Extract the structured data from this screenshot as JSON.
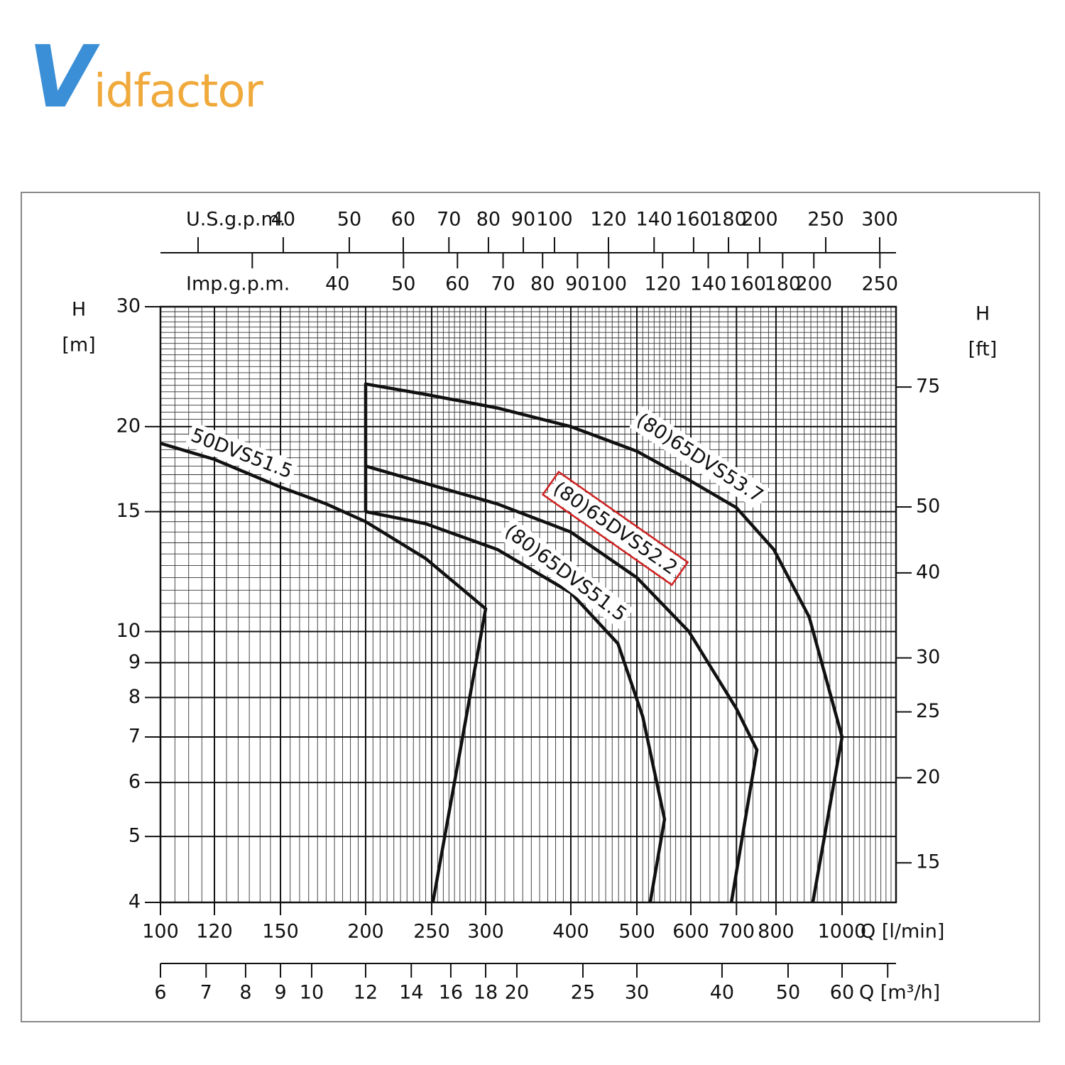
{
  "logo": "Vidfactor",
  "chart_data": {
    "type": "line",
    "log_x": true,
    "log_y": true,
    "grid": true,
    "xlabel": "Q [l/min]",
    "ylabel": [
      "H",
      "[m]"
    ],
    "y2label": [
      "H",
      "[ft]"
    ],
    "xlim": [
      100,
      1200
    ],
    "xticks": [
      100,
      120,
      150,
      200,
      250,
      300,
      400,
      500,
      600,
      700,
      800,
      1000
    ],
    "ylim": [
      4,
      30
    ],
    "yticks": [
      4,
      5,
      6,
      7,
      8,
      9,
      10,
      15,
      20,
      30
    ],
    "y2lim": [
      13.12,
      98.43
    ],
    "y2ticks": [
      15,
      20,
      25,
      30,
      40,
      50,
      75
    ],
    "xgrid_minor": [
      105,
      110,
      115,
      125,
      130,
      135,
      140,
      145,
      155,
      160,
      165,
      170,
      175,
      180,
      185,
      190,
      195,
      205,
      210,
      215,
      220,
      225,
      230,
      235,
      240,
      245,
      255,
      260,
      265,
      270,
      275,
      280,
      285,
      290,
      295,
      310,
      320,
      330,
      340,
      350,
      360,
      370,
      380,
      390,
      410,
      420,
      430,
      440,
      450,
      460,
      470,
      480,
      490,
      510,
      520,
      530,
      540,
      550,
      560,
      570,
      580,
      590,
      620,
      640,
      660,
      680,
      720,
      740,
      760,
      780,
      820,
      840,
      860,
      880,
      900,
      920,
      940,
      960,
      980,
      1020,
      1040,
      1060,
      1080,
      1100,
      1120,
      1140,
      1160,
      1180
    ],
    "ygrid_minor": [
      10.5,
      11,
      11.5,
      12,
      12.5,
      13,
      13.5,
      14,
      14.5,
      15.5,
      16,
      16.5,
      17,
      17.5,
      18,
      18.5,
      19,
      19.5,
      20.5,
      21,
      21.5,
      22,
      22.5,
      23,
      23.5,
      24,
      24.5,
      25,
      25.5,
      26,
      26.5,
      27,
      27.5,
      28,
      28.5,
      29,
      29.5
    ],
    "top_axes": [
      {
        "label": "U.S.g.p.m.",
        "xlim": [
          26.42,
          317.0
        ],
        "ticks": [
          40,
          50,
          60,
          70,
          80,
          90,
          100,
          120,
          140,
          160,
          180,
          200,
          250,
          300
        ],
        "minor_ticks": [
          30
        ]
      },
      {
        "label": "Imp.g.p.m.",
        "xlim": [
          22.0,
          264.0
        ],
        "ticks": [
          40,
          50,
          60,
          70,
          80,
          90,
          100,
          120,
          140,
          160,
          180,
          200,
          250
        ],
        "minor_ticks": [
          30
        ]
      }
    ],
    "bottom_axis": {
      "label": "Q [m³/h]",
      "xlim": [
        6,
        72
      ],
      "ticks": [
        6,
        7,
        8,
        9,
        10,
        12,
        14,
        16,
        18,
        20,
        25,
        30,
        40,
        50,
        60
      ],
      "minor_ticks": [
        70
      ]
    },
    "series": [
      {
        "name": "50DVS51.5",
        "color": "#111111",
        "x": [
          100,
          120,
          150,
          175,
          200,
          245,
          300,
          251
        ],
        "y": [
          18.9,
          17.9,
          16.3,
          15.4,
          14.5,
          12.8,
          10.8,
          4
        ]
      },
      {
        "name": "(80)65DVS51.5",
        "color": "#111111",
        "x": [
          200,
          245,
          312,
          400,
          469,
          510,
          549,
          523
        ],
        "y": [
          15,
          14.4,
          13.2,
          11.4,
          9.6,
          7.5,
          5.3,
          4
        ]
      },
      {
        "name": "(80)65DVS52.2",
        "color": "#111111",
        "highlight": true,
        "x": [
          200,
          245,
          312,
          400,
          500,
          596,
          700,
          750,
          688
        ],
        "y": [
          17.5,
          16.5,
          15.4,
          14.0,
          12.0,
          10.0,
          7.7,
          6.7,
          4
        ]
      },
      {
        "name": "(80)65DVS53.7",
        "color": "#111111",
        "x": [
          200,
          200,
          245,
          312,
          400,
          500,
          596,
          700,
          794,
          895,
          1000,
          906
        ],
        "y": [
          15,
          23.1,
          22.3,
          21.3,
          20.0,
          18.4,
          16.7,
          15.2,
          13.2,
          10.5,
          7.0,
          4
        ]
      }
    ]
  }
}
